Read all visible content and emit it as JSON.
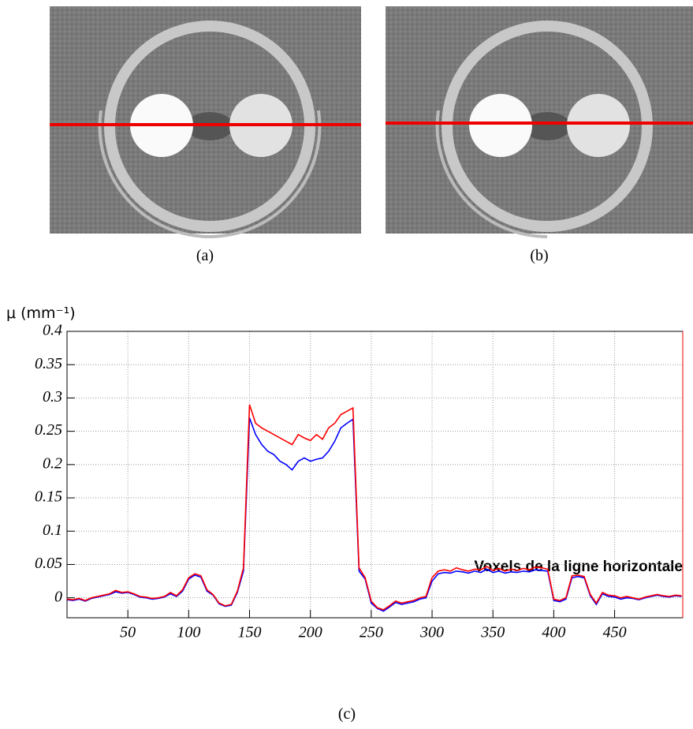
{
  "figure": {
    "panels": [
      {
        "caption": "(a)"
      },
      {
        "caption": "(b)"
      }
    ],
    "caption": "(c)"
  },
  "chart_data": {
    "type": "line",
    "y_label": "μ (mm⁻¹)",
    "x_label": "Voxels de la ligne horizontale",
    "x": [
      0,
      5,
      10,
      15,
      20,
      25,
      30,
      35,
      40,
      45,
      50,
      55,
      60,
      65,
      70,
      75,
      80,
      85,
      90,
      95,
      100,
      105,
      110,
      115,
      120,
      125,
      130,
      135,
      140,
      145,
      150,
      155,
      160,
      165,
      170,
      175,
      180,
      185,
      190,
      195,
      200,
      205,
      210,
      215,
      220,
      225,
      230,
      235,
      240,
      245,
      250,
      255,
      260,
      265,
      270,
      275,
      280,
      285,
      290,
      295,
      300,
      305,
      310,
      315,
      320,
      325,
      330,
      335,
      340,
      345,
      350,
      355,
      360,
      365,
      370,
      375,
      380,
      385,
      390,
      395,
      400,
      405,
      410,
      415,
      420,
      425,
      430,
      435,
      440,
      445,
      450,
      455,
      460,
      465,
      470,
      475,
      480,
      485,
      490,
      495,
      500,
      505
    ],
    "series": [
      {
        "color": "#0000ff",
        "values": [
          -0.003,
          -0.004,
          -0.002,
          -0.005,
          -0.001,
          0.001,
          0.003,
          0.005,
          0.009,
          0.007,
          0.008,
          0.005,
          0.001,
          0.0,
          -0.002,
          -0.001,
          0.001,
          0.006,
          0.002,
          0.01,
          0.028,
          0.034,
          0.031,
          0.01,
          0.004,
          -0.009,
          -0.013,
          -0.011,
          0.008,
          0.04,
          0.27,
          0.245,
          0.23,
          0.22,
          0.215,
          0.205,
          0.2,
          0.192,
          0.205,
          0.21,
          0.205,
          0.208,
          0.21,
          0.22,
          0.235,
          0.255,
          0.262,
          0.268,
          0.04,
          0.028,
          -0.008,
          -0.016,
          -0.02,
          -0.014,
          -0.007,
          -0.01,
          -0.008,
          -0.006,
          -0.002,
          0.0,
          0.025,
          0.036,
          0.038,
          0.037,
          0.04,
          0.039,
          0.037,
          0.04,
          0.038,
          0.043,
          0.038,
          0.04,
          0.037,
          0.039,
          0.038,
          0.04,
          0.039,
          0.042,
          0.041,
          0.04,
          -0.004,
          -0.006,
          -0.002,
          0.03,
          0.032,
          0.03,
          0.003,
          -0.01,
          0.006,
          0.002,
          0.001,
          -0.002,
          0.0,
          -0.001,
          -0.003,
          0.0,
          0.002,
          0.004,
          0.002,
          0.001,
          0.003,
          0.002
        ]
      },
      {
        "color": "#ff0000",
        "values": [
          -0.002,
          -0.003,
          -0.001,
          -0.004,
          0.0,
          0.002,
          0.004,
          0.006,
          0.011,
          0.008,
          0.009,
          0.006,
          0.002,
          0.001,
          -0.001,
          0.0,
          0.002,
          0.008,
          0.003,
          0.012,
          0.03,
          0.036,
          0.033,
          0.012,
          0.005,
          -0.008,
          -0.012,
          -0.01,
          0.01,
          0.045,
          0.29,
          0.262,
          0.255,
          0.25,
          0.245,
          0.24,
          0.235,
          0.23,
          0.245,
          0.24,
          0.236,
          0.245,
          0.238,
          0.255,
          0.262,
          0.275,
          0.28,
          0.285,
          0.045,
          0.03,
          -0.005,
          -0.015,
          -0.018,
          -0.012,
          -0.005,
          -0.008,
          -0.006,
          -0.004,
          0.0,
          0.002,
          0.03,
          0.04,
          0.042,
          0.04,
          0.045,
          0.042,
          0.04,
          0.043,
          0.042,
          0.047,
          0.041,
          0.044,
          0.04,
          0.043,
          0.041,
          0.044,
          0.042,
          0.046,
          0.045,
          0.043,
          -0.002,
          -0.004,
          0.0,
          0.033,
          0.034,
          0.032,
          0.005,
          -0.008,
          0.008,
          0.004,
          0.003,
          0.0,
          0.002,
          0.0,
          -0.002,
          0.001,
          0.003,
          0.005,
          0.003,
          0.002,
          0.004,
          0.003
        ]
      }
    ],
    "xlim": [
      0,
      506
    ],
    "ylim": [
      -0.03,
      0.4
    ],
    "xticks": [
      50,
      100,
      150,
      200,
      250,
      300,
      350,
      400,
      450
    ],
    "yticks": [
      0,
      0.05,
      0.1,
      0.15,
      0.2,
      0.25,
      0.3,
      0.35,
      0.4
    ],
    "grid": true
  }
}
